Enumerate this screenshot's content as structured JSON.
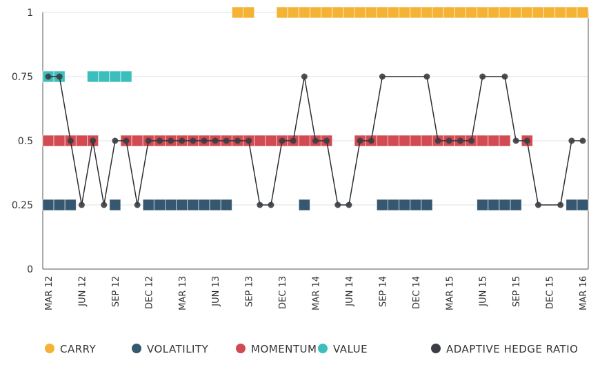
{
  "chart_data": {
    "type": "line",
    "title": "",
    "xlabel": "",
    "ylabel": "",
    "ylim": [
      0,
      1
    ],
    "y_ticks": [
      "0",
      "0.25",
      "0.5",
      "0.75",
      "1"
    ],
    "y_tick_values": [
      0,
      0.25,
      0.5,
      0.75,
      1
    ],
    "x_tick_labels": [
      "MAR 12",
      "JUN 12",
      "SEP 12",
      "DEC 12",
      "MAR 13",
      "JUN 13",
      "SEP 13",
      "DEC 13",
      "MAR 14",
      "JUN 14",
      "SEP 14",
      "DEC 14",
      "MAR 15",
      "JUN 15",
      "SEP 15",
      "DEC 15",
      "MAR 16"
    ],
    "months_count": 49,
    "grid": true,
    "legend_position": "bottom",
    "colors": {
      "carry": "#f5b335",
      "volatility": "#35576f",
      "momentum": "#d24a52",
      "value": "#3cbfbc",
      "hedge": "#3a3d42"
    },
    "legend": [
      {
        "key": "carry",
        "label": "CARRY"
      },
      {
        "key": "volatility",
        "label": "VOLATILITY"
      },
      {
        "key": "momentum",
        "label": "MOMENTUM"
      },
      {
        "key": "value",
        "label": "VALUE"
      },
      {
        "key": "hedge",
        "label": "ADAPTIVE HEDGE RATIO"
      }
    ],
    "factor_series": [
      {
        "key": "carry",
        "level": 1,
        "active_month_ranges": [
          [
            17,
            18
          ],
          [
            21,
            48
          ]
        ]
      },
      {
        "key": "value",
        "level": 0.75,
        "active_month_ranges": [
          [
            0,
            1
          ],
          [
            4,
            7
          ]
        ]
      },
      {
        "key": "momentum",
        "level": 0.5,
        "active_month_ranges": [
          [
            0,
            4
          ],
          [
            7,
            25
          ],
          [
            28,
            41
          ],
          [
            43,
            43
          ]
        ]
      },
      {
        "key": "volatility",
        "level": 0.25,
        "active_month_ranges": [
          [
            0,
            2
          ],
          [
            6,
            6
          ],
          [
            9,
            16
          ],
          [
            23,
            23
          ],
          [
            30,
            34
          ],
          [
            39,
            42
          ],
          [
            47,
            48
          ]
        ]
      }
    ],
    "hedge_ratio": {
      "name": "ADAPTIVE HEDGE RATIO",
      "values": [
        0.75,
        0.75,
        0.5,
        0.25,
        0.5,
        0.25,
        0.5,
        0.5,
        0.25,
        0.5,
        0.5,
        0.5,
        0.5,
        0.5,
        0.5,
        0.5,
        0.5,
        0.5,
        0.5,
        0.25,
        0.25,
        0.5,
        0.5,
        0.75,
        0.5,
        0.5,
        0.25,
        0.25,
        0.5,
        0.5,
        0.75,
        null,
        null,
        null,
        0.75,
        0.5,
        0.5,
        0.5,
        0.5,
        0.75,
        null,
        0.75,
        0.5,
        0.5,
        0.25,
        null,
        0.25,
        0.5,
        0.5
      ]
    }
  }
}
